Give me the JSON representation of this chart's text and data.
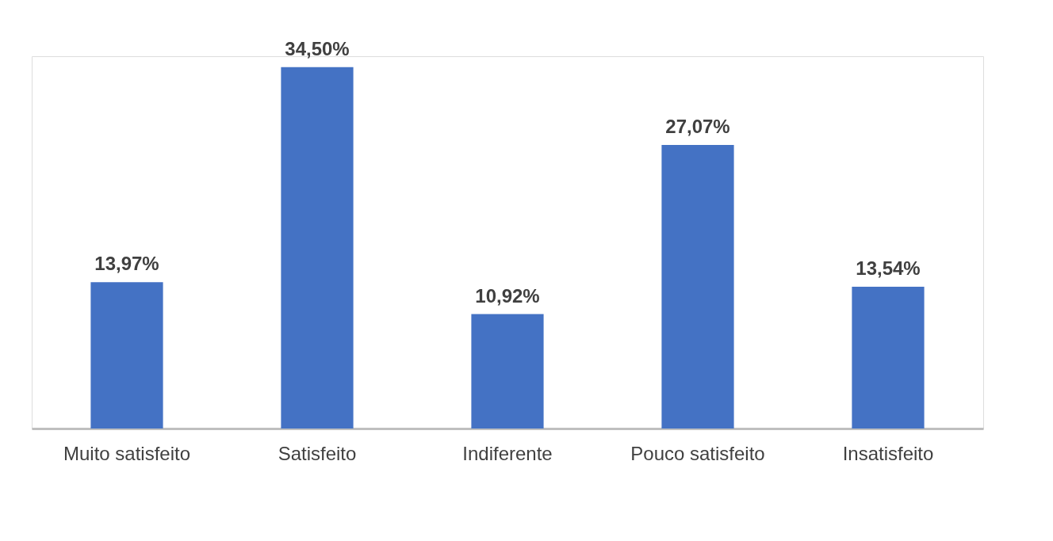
{
  "chart_data": {
    "type": "bar",
    "categories": [
      "Muito satisfeito",
      "Satisfeito",
      "Indiferente",
      "Pouco satisfeito",
      "Insatisfeito"
    ],
    "values": [
      13.97,
      34.5,
      10.92,
      27.07,
      13.54
    ],
    "color": "#4472c4",
    "value_labels": [
      "13,97%",
      "34,50%",
      "10,92%",
      "27,07%",
      "13,54%"
    ],
    "grid": false
  }
}
